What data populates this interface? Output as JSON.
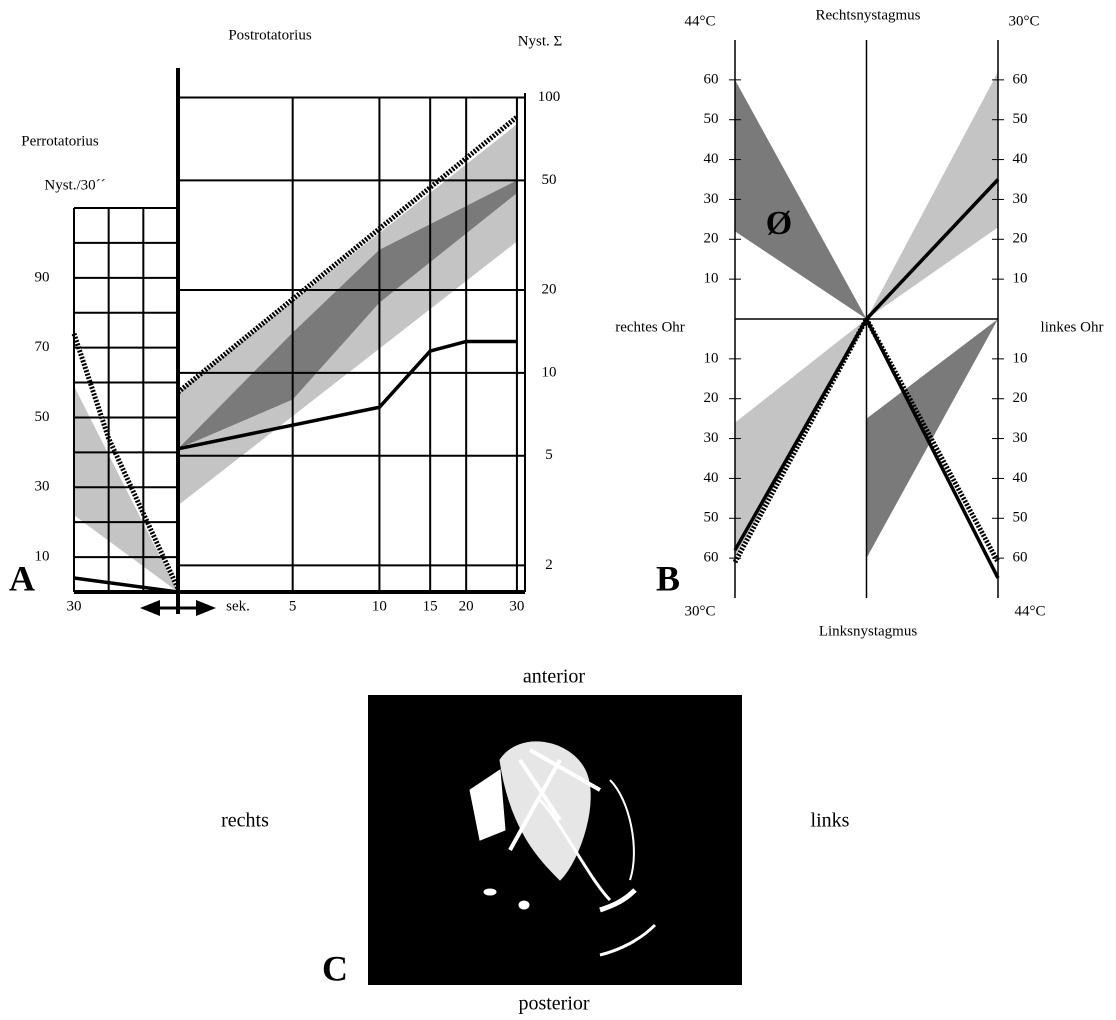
{
  "chart_data": [
    {
      "type": "line",
      "label": "A",
      "title": "Perrotatorius",
      "y_label": "Nyst./30´´",
      "xlim": [
        30,
        0
      ],
      "xticks": [
        30
      ],
      "minor_xticks": [
        20,
        10
      ],
      "ylim": [
        0,
        110
      ],
      "yticks": [
        10,
        30,
        50,
        70,
        90
      ],
      "minor_yticks": [
        20,
        40,
        60,
        80,
        100
      ],
      "grid": true,
      "series": [
        {
          "color": "#000000",
          "style": "dotted",
          "x": [
            30,
            20,
            0
          ],
          "values": [
            74,
            44,
            1
          ]
        },
        {
          "color": "#000000",
          "style": "solid",
          "x": [
            30,
            0
          ],
          "values": [
            4,
            0
          ]
        }
      ],
      "bands": [
        {
          "color": "#c4c4c4",
          "x": [
            30,
            0
          ],
          "low": [
            22,
            0
          ],
          "high": [
            59,
            0
          ]
        }
      ]
    },
    {
      "type": "line",
      "title": "Postrotatorius",
      "y_label": "Nyst. Σ",
      "x_label": "sek.",
      "xlim": [
        2,
        32
      ],
      "xticks": [
        5,
        10,
        15,
        20,
        30
      ],
      "xlog": true,
      "ylim": [
        1.6,
        128
      ],
      "yticks": [
        2,
        5,
        10,
        20,
        50,
        100
      ],
      "ylog": true,
      "grid": true,
      "series": [
        {
          "color": "#000000",
          "style": "dotted",
          "x": [
            2,
            30
          ],
          "values": [
            8.5,
            85
          ]
        },
        {
          "color": "#000000",
          "style": "solid",
          "x": [
            2,
            10,
            15,
            20,
            30
          ],
          "values": [
            5.3,
            7.5,
            12,
            13,
            13
          ]
        }
      ],
      "bands": [
        {
          "color": "#c4c4c4",
          "x": [
            2,
            30
          ],
          "low": [
            3.3,
            30
          ],
          "high": [
            8.5,
            80
          ]
        },
        {
          "color": "#7a7a7a",
          "x": [
            2,
            5,
            10,
            30
          ],
          "low": [
            5.3,
            8,
            18,
            45
          ],
          "high": [
            5.3,
            14,
            28,
            50
          ]
        }
      ]
    },
    {
      "type": "line",
      "label": "B",
      "title": "Rechtsnystagmus",
      "bottom_title": "Linksnystagmus",
      "left_label": "rechtes Ohr",
      "right_label": "linkes Ohr",
      "left_top": "44°C",
      "left_bottom": "30°C",
      "right_top": "30°C",
      "right_bottom": "44°C",
      "annotation": "Ø",
      "xlim": [
        -1,
        1
      ],
      "ylim": [
        -70,
        70
      ],
      "yticks": [
        {
          "value": -60,
          "label": "60"
        },
        {
          "value": -50,
          "label": "50"
        },
        {
          "value": -40,
          "label": "40"
        },
        {
          "value": -30,
          "label": "30"
        },
        {
          "value": -20,
          "label": "20"
        },
        {
          "value": -10,
          "label": "10"
        },
        10,
        20,
        30,
        40,
        50,
        60
      ],
      "series": [
        {
          "color": "#000000",
          "style": "dotted",
          "x": [
            -1,
            0,
            1
          ],
          "values": [
            -61,
            0,
            -61
          ]
        },
        {
          "color": "#000000",
          "style": "solid",
          "x": [
            -1,
            0,
            1
          ],
          "values": [
            -58,
            0,
            35
          ]
        },
        {
          "color": "#000000",
          "style": "solid",
          "x": [
            0,
            1
          ],
          "values": [
            0,
            -65
          ]
        }
      ],
      "bands": [
        {
          "color": "#7a7a7a",
          "x": [
            -1,
            0
          ],
          "low": [
            22,
            0
          ],
          "high": [
            60,
            0
          ]
        },
        {
          "color": "#c4c4c4",
          "x": [
            0,
            1
          ],
          "low": [
            0,
            23
          ],
          "high": [
            0,
            62
          ]
        },
        {
          "color": "#c4c4c4",
          "x": [
            -1,
            0
          ],
          "low": [
            -60,
            0
          ],
          "high": [
            -26,
            0
          ]
        },
        {
          "color": "#7a7a7a",
          "x": [
            0,
            1
          ],
          "low": [
            -60,
            0
          ],
          "high": [
            -25,
            0
          ]
        }
      ]
    }
  ],
  "panel_c": {
    "label": "C",
    "top": "anterior",
    "bottom": "posterior",
    "left": "rechts",
    "right": "links"
  }
}
